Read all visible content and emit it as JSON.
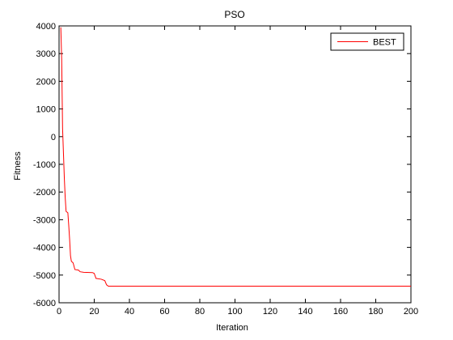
{
  "chart_data": {
    "type": "line",
    "title": "PSO",
    "xlabel": "Iteration",
    "ylabel": "Fitness",
    "xlim": [
      0,
      200
    ],
    "ylim": [
      -6000,
      4000
    ],
    "x_ticks": [
      0,
      20,
      40,
      60,
      80,
      100,
      120,
      140,
      160,
      180,
      200
    ],
    "y_ticks": [
      -6000,
      -5000,
      -4000,
      -3000,
      -2000,
      -1000,
      0,
      1000,
      2000,
      3000,
      4000
    ],
    "grid": false,
    "legend_position": "top-right",
    "series": [
      {
        "name": "BEST",
        "color": "#ff0000",
        "points": [
          [
            1,
            3950
          ],
          [
            1.5,
            2800
          ],
          [
            2,
            300
          ],
          [
            2.5,
            -600
          ],
          [
            3,
            -1500
          ],
          [
            3.5,
            -2200
          ],
          [
            4,
            -2700
          ],
          [
            5,
            -2750
          ],
          [
            5.5,
            -3200
          ],
          [
            6,
            -3700
          ],
          [
            6.5,
            -4300
          ],
          [
            7,
            -4500
          ],
          [
            8,
            -4560
          ],
          [
            9,
            -4800
          ],
          [
            11,
            -4820
          ],
          [
            12,
            -4880
          ],
          [
            14,
            -4900
          ],
          [
            19,
            -4910
          ],
          [
            20,
            -4940
          ],
          [
            21,
            -5120
          ],
          [
            24,
            -5150
          ],
          [
            26,
            -5200
          ],
          [
            27,
            -5350
          ],
          [
            28,
            -5400
          ],
          [
            200,
            -5400
          ]
        ]
      }
    ]
  }
}
